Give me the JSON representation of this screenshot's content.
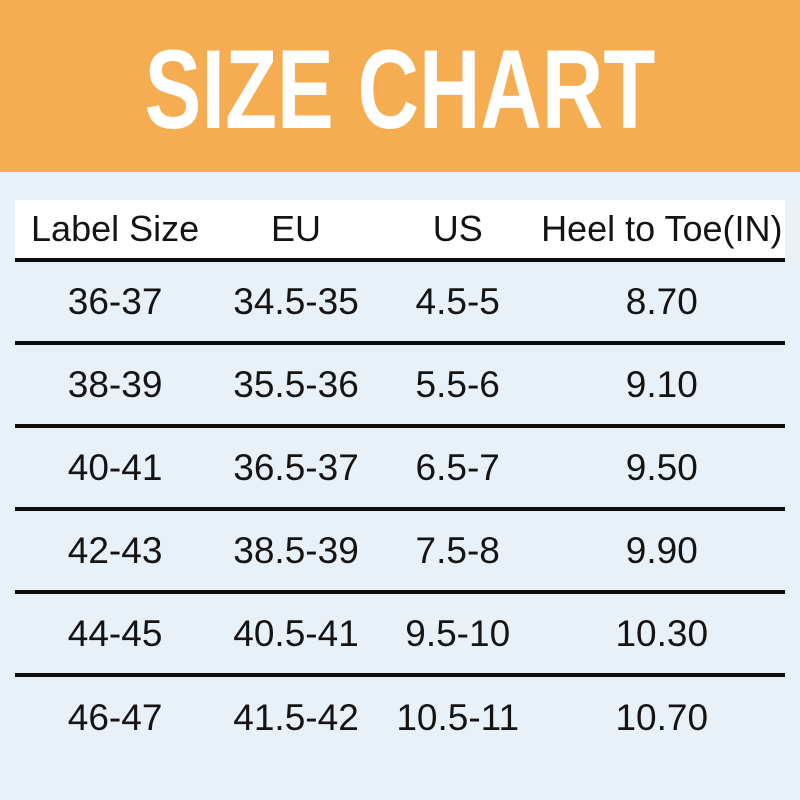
{
  "title": "SIZE CHART",
  "colors": {
    "banner_bg": "#F6AD52",
    "page_bg": "#E9F1F8",
    "header_row_bg": "#FFFFFF",
    "title_text": "#FFFFFF",
    "body_text": "#141414",
    "rule": "#0D0D0D"
  },
  "table": {
    "headers": [
      "Label Size",
      "EU",
      "US",
      "Heel to Toe(IN)"
    ],
    "rows": [
      [
        "36-37",
        "34.5-35",
        "4.5-5",
        "8.70"
      ],
      [
        "38-39",
        "35.5-36",
        "5.5-6",
        "9.10"
      ],
      [
        "40-41",
        "36.5-37",
        "6.5-7",
        "9.50"
      ],
      [
        "42-43",
        "38.5-39",
        "7.5-8",
        "9.90"
      ],
      [
        "44-45",
        "40.5-41",
        "9.5-10",
        "10.30"
      ],
      [
        "46-47",
        "41.5-42",
        "10.5-11",
        "10.70"
      ]
    ]
  },
  "chart_data": {
    "type": "table",
    "title": "SIZE CHART",
    "columns": [
      "Label Size",
      "EU",
      "US",
      "Heel to Toe(IN)"
    ],
    "rows": [
      [
        "36-37",
        "34.5-35",
        "4.5-5",
        "8.70"
      ],
      [
        "38-39",
        "35.5-36",
        "5.5-6",
        "9.10"
      ],
      [
        "40-41",
        "36.5-37",
        "6.5-7",
        "9.50"
      ],
      [
        "42-43",
        "38.5-39",
        "7.5-8",
        "9.90"
      ],
      [
        "44-45",
        "40.5-41",
        "9.5-10",
        "10.30"
      ],
      [
        "46-47",
        "41.5-42",
        "10.5-11",
        "10.70"
      ]
    ]
  }
}
